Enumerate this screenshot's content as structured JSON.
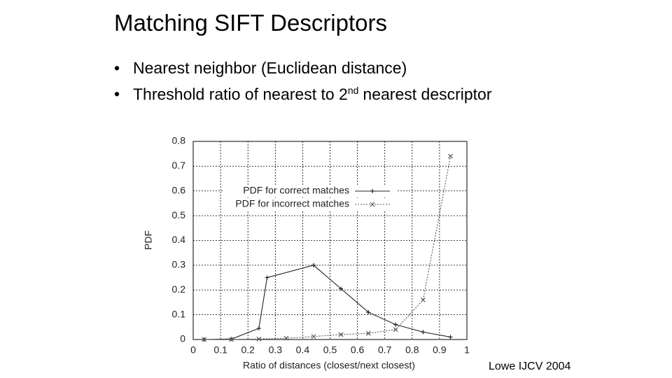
{
  "slide": {
    "title": "Matching SIFT Descriptors",
    "bullets": [
      [
        "Nearest neighbor (Euclidean distance)"
      ],
      [
        "Threshold ratio of nearest to 2",
        "nd",
        "nearest descriptor"
      ]
    ],
    "credit": "Lowe IJCV 2004"
  },
  "chart_data": {
    "type": "line",
    "xlabel": "Ratio of distances (closest/next closest)",
    "ylabel": "PDF",
    "xlim": [
      0,
      1
    ],
    "ylim": [
      0,
      0.8
    ],
    "xticks": [
      0,
      0.1,
      0.2,
      0.3,
      0.4,
      0.5,
      0.6,
      0.7,
      0.8,
      0.9,
      1
    ],
    "yticks": [
      0,
      0.1,
      0.2,
      0.3,
      0.4,
      0.5,
      0.6,
      0.7,
      0.8
    ],
    "grid": true,
    "legend": "upper center",
    "series": [
      {
        "name": "PDF for correct matches",
        "color": "#222222",
        "style": "solid",
        "marker": "plus",
        "x": [
          0.04,
          0.14,
          0.24,
          0.27,
          0.44,
          0.54,
          0.64,
          0.74,
          0.84,
          0.94
        ],
        "values": [
          0,
          0.002,
          0.045,
          0.25,
          0.3,
          0.205,
          0.11,
          0.06,
          0.03,
          0.01
        ]
      },
      {
        "name": "PDF for incorrect matches",
        "color": "#555555",
        "style": "dotted",
        "marker": "cross",
        "x": [
          0.04,
          0.14,
          0.24,
          0.34,
          0.44,
          0.54,
          0.64,
          0.74,
          0.84,
          0.94
        ],
        "values": [
          0,
          0,
          0.002,
          0.005,
          0.012,
          0.02,
          0.025,
          0.04,
          0.16,
          0.74
        ]
      }
    ]
  }
}
